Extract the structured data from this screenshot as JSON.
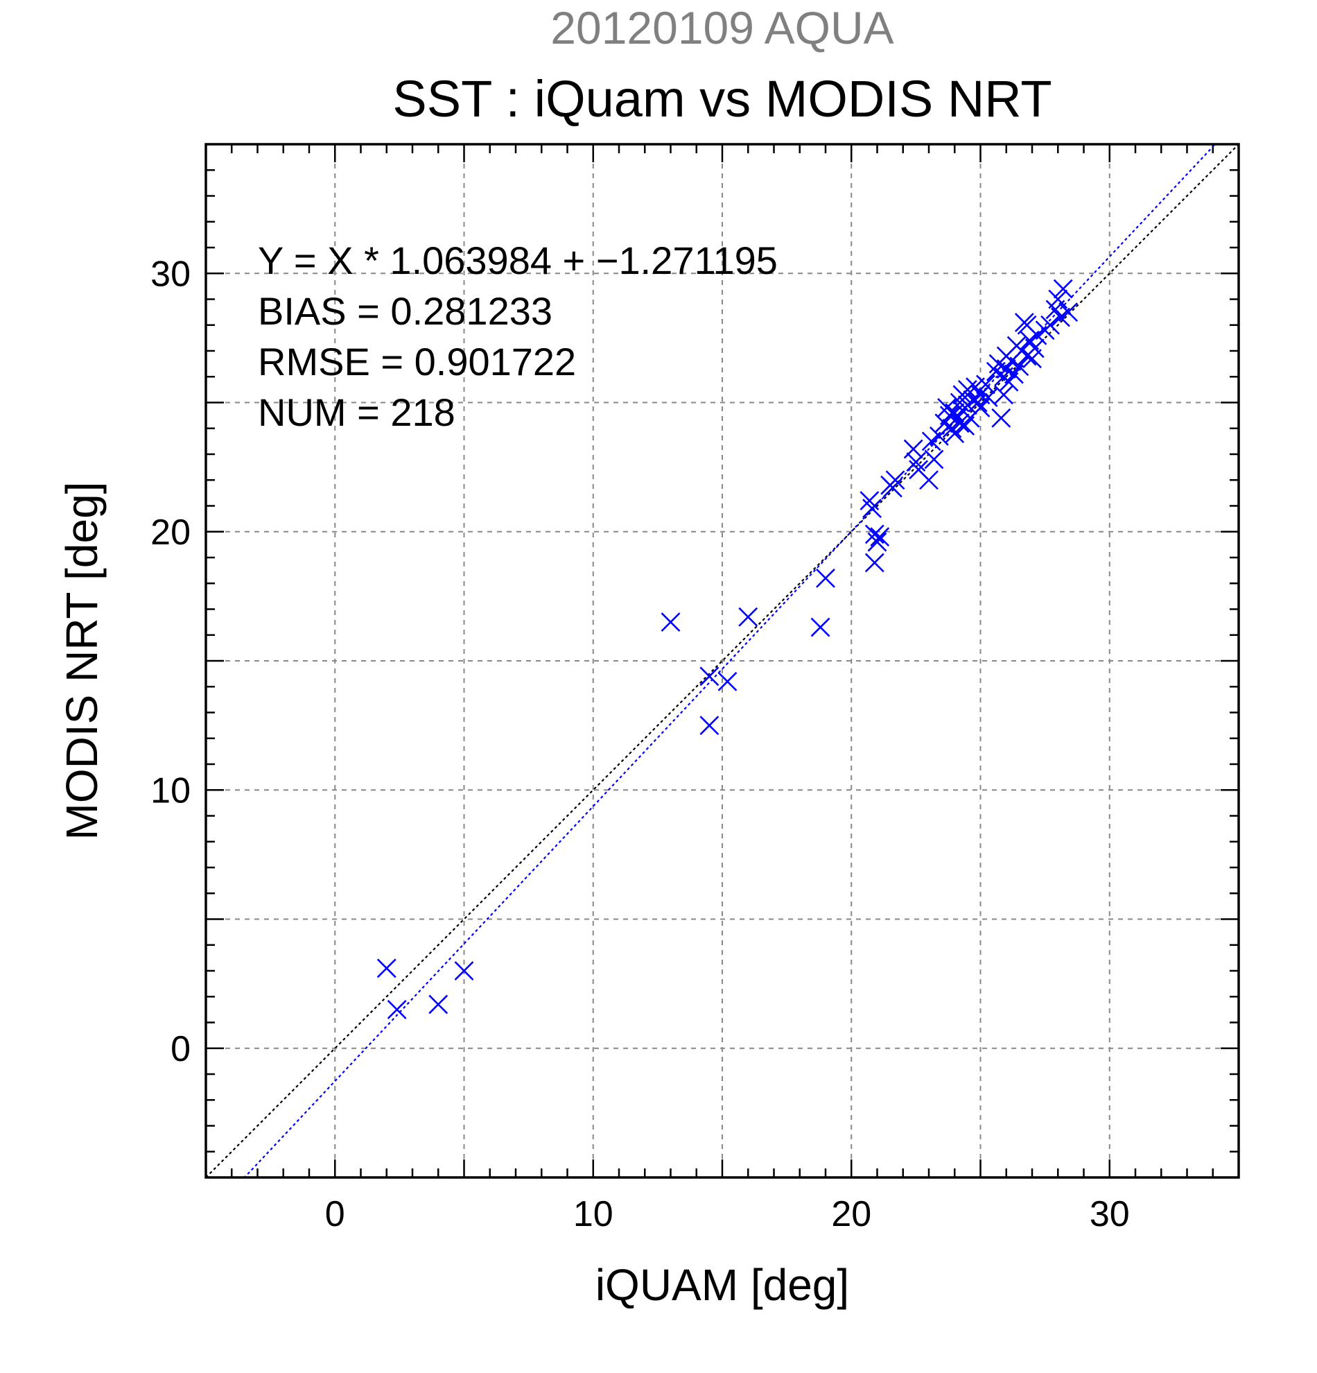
{
  "chart_data": {
    "type": "scatter",
    "title_sup": "20120109 AQUA",
    "title": "SST : iQuam vs MODIS NRT",
    "xlabel": "iQUAM [deg]",
    "ylabel": "MODIS NRT [deg]",
    "xlim": [
      -5,
      35
    ],
    "ylim": [
      -5,
      35
    ],
    "xticks": [
      0,
      10,
      20,
      30
    ],
    "yticks": [
      0,
      10,
      20,
      30
    ],
    "xtick_labels": [
      "0",
      "10",
      "20",
      "30"
    ],
    "ytick_labels": [
      "0",
      "10",
      "20",
      "30"
    ],
    "grid": true,
    "marker": "x",
    "marker_color": "#0000ff",
    "fit_line_color": "#0000ff",
    "reference_line_color": "#000000",
    "stats": {
      "equation": "Y = X * 1.063984 + −1.271195",
      "bias": "BIAS = 0.281233",
      "rmse": "RMSE = 0.901722",
      "num": "NUM = 218"
    },
    "fit": {
      "slope": 1.063984,
      "intercept": -1.271195
    },
    "reference": {
      "slope": 1,
      "intercept": 0
    },
    "points": [
      [
        2.0,
        3.1
      ],
      [
        2.4,
        1.5
      ],
      [
        4.0,
        1.7
      ],
      [
        5.0,
        3.0
      ],
      [
        13.0,
        16.5
      ],
      [
        14.5,
        14.4
      ],
      [
        14.5,
        12.5
      ],
      [
        15.2,
        14.2
      ],
      [
        16.0,
        16.7
      ],
      [
        18.8,
        16.3
      ],
      [
        19.0,
        18.2
      ],
      [
        20.7,
        21.2
      ],
      [
        20.8,
        20.9
      ],
      [
        20.9,
        19.9
      ],
      [
        20.9,
        18.8
      ],
      [
        21.0,
        19.6
      ],
      [
        21.1,
        19.8
      ],
      [
        21.5,
        21.8
      ],
      [
        21.7,
        22.0
      ],
      [
        21.6,
        21.7
      ],
      [
        22.4,
        23.2
      ],
      [
        22.5,
        22.7
      ],
      [
        22.6,
        22.4
      ],
      [
        23.0,
        22.0
      ],
      [
        23.2,
        22.8
      ],
      [
        23.1,
        23.5
      ],
      [
        23.4,
        23.7
      ],
      [
        23.6,
        24.2
      ],
      [
        23.7,
        24.8
      ],
      [
        23.8,
        24.5
      ],
      [
        23.9,
        24.0
      ],
      [
        24.0,
        24.6
      ],
      [
        24.0,
        23.8
      ],
      [
        24.1,
        24.4
      ],
      [
        24.2,
        25.0
      ],
      [
        24.2,
        24.2
      ],
      [
        24.3,
        24.7
      ],
      [
        24.3,
        25.3
      ],
      [
        24.4,
        24.1
      ],
      [
        24.5,
        25.5
      ],
      [
        24.5,
        24.9
      ],
      [
        24.6,
        24.4
      ],
      [
        24.7,
        25.1
      ],
      [
        24.8,
        25.6
      ],
      [
        24.9,
        25.0
      ],
      [
        25.0,
        25.3
      ],
      [
        25.0,
        24.8
      ],
      [
        25.2,
        25.7
      ],
      [
        25.3,
        25.2
      ],
      [
        25.6,
        26.2
      ],
      [
        25.7,
        26.5
      ],
      [
        25.8,
        24.4
      ],
      [
        25.9,
        25.3
      ],
      [
        25.9,
        26.0
      ],
      [
        26.0,
        26.8
      ],
      [
        26.0,
        26.3
      ],
      [
        26.1,
        25.8
      ],
      [
        26.2,
        26.6
      ],
      [
        26.3,
        26.1
      ],
      [
        26.4,
        27.2
      ],
      [
        26.5,
        26.4
      ],
      [
        26.6,
        27.0
      ],
      [
        26.7,
        28.1
      ],
      [
        26.8,
        28.0
      ],
      [
        26.8,
        26.8
      ],
      [
        26.9,
        27.4
      ],
      [
        27.0,
        26.7
      ],
      [
        27.1,
        27.1
      ],
      [
        27.2,
        27.6
      ],
      [
        27.5,
        27.8
      ],
      [
        27.7,
        28.0
      ],
      [
        27.9,
        28.6
      ],
      [
        28.0,
        29.0
      ],
      [
        28.1,
        28.3
      ],
      [
        28.2,
        29.4
      ],
      [
        28.4,
        28.5
      ]
    ]
  }
}
